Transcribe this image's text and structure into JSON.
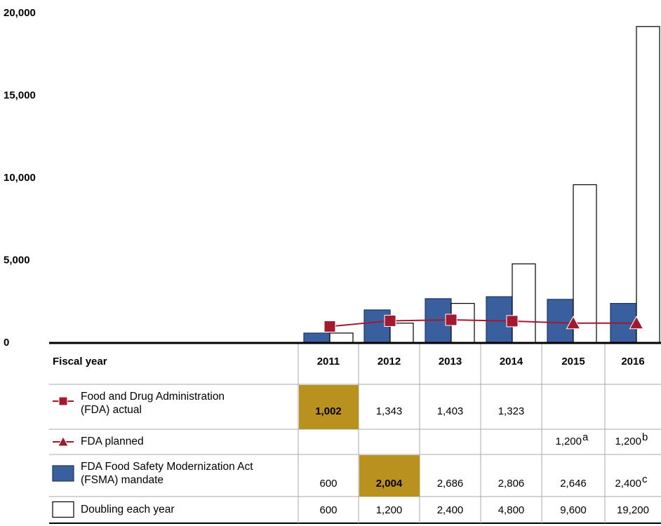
{
  "chart_data": {
    "type": "bar",
    "x_label": "Fiscal year",
    "categories": [
      "2011",
      "2012",
      "2013",
      "2014",
      "2015",
      "2016"
    ],
    "ylim": [
      0,
      20000
    ],
    "yticks": [
      0,
      {
        "value": 5000,
        "label": "5,000"
      },
      {
        "value": 10000,
        "label": "10,000"
      },
      {
        "value": 15000,
        "label": "15,000"
      },
      {
        "value": 20000,
        "label": "20,000"
      }
    ],
    "highlight_color": "#b8911e",
    "series": [
      {
        "name": "Food and Drug Administration\n(FDA) actual",
        "kind": "line",
        "marker": "square",
        "color": "#a3192f",
        "values": [
          1002,
          1343,
          1403,
          1323,
          null,
          null
        ],
        "value_labels": [
          "1,002",
          "1,343",
          "1,403",
          "1,323",
          null,
          null
        ],
        "highlight": [
          true,
          false,
          false,
          false,
          false,
          false
        ]
      },
      {
        "name": "FDA planned",
        "kind": "line",
        "marker": "triangle",
        "color": "#a3192f",
        "values": [
          null,
          null,
          null,
          null,
          1200,
          1200
        ],
        "value_labels": [
          null,
          null,
          null,
          null,
          "1,200",
          "1,200"
        ],
        "notes": [
          null,
          null,
          null,
          null,
          "a",
          "b"
        ]
      },
      {
        "name": "FDA Food Safety Modernization Act\n(FSMA) mandate",
        "kind": "bar",
        "color": "#3a5f9f",
        "values": [
          600,
          2004,
          2686,
          2806,
          2646,
          2400
        ],
        "value_labels": [
          "600",
          "2,004",
          "2,686",
          "2,806",
          "2,646",
          "2,400"
        ],
        "notes": [
          null,
          null,
          null,
          null,
          null,
          "c"
        ],
        "highlight": [
          false,
          true,
          false,
          false,
          false,
          false
        ]
      },
      {
        "name": "Doubling each year",
        "kind": "bar",
        "color": "#ffffff",
        "values": [
          600,
          1200,
          2400,
          4800,
          9600,
          19200
        ],
        "value_labels": [
          "600",
          "1,200",
          "2,400",
          "4,800",
          "9,600",
          "19,200"
        ]
      }
    ]
  }
}
